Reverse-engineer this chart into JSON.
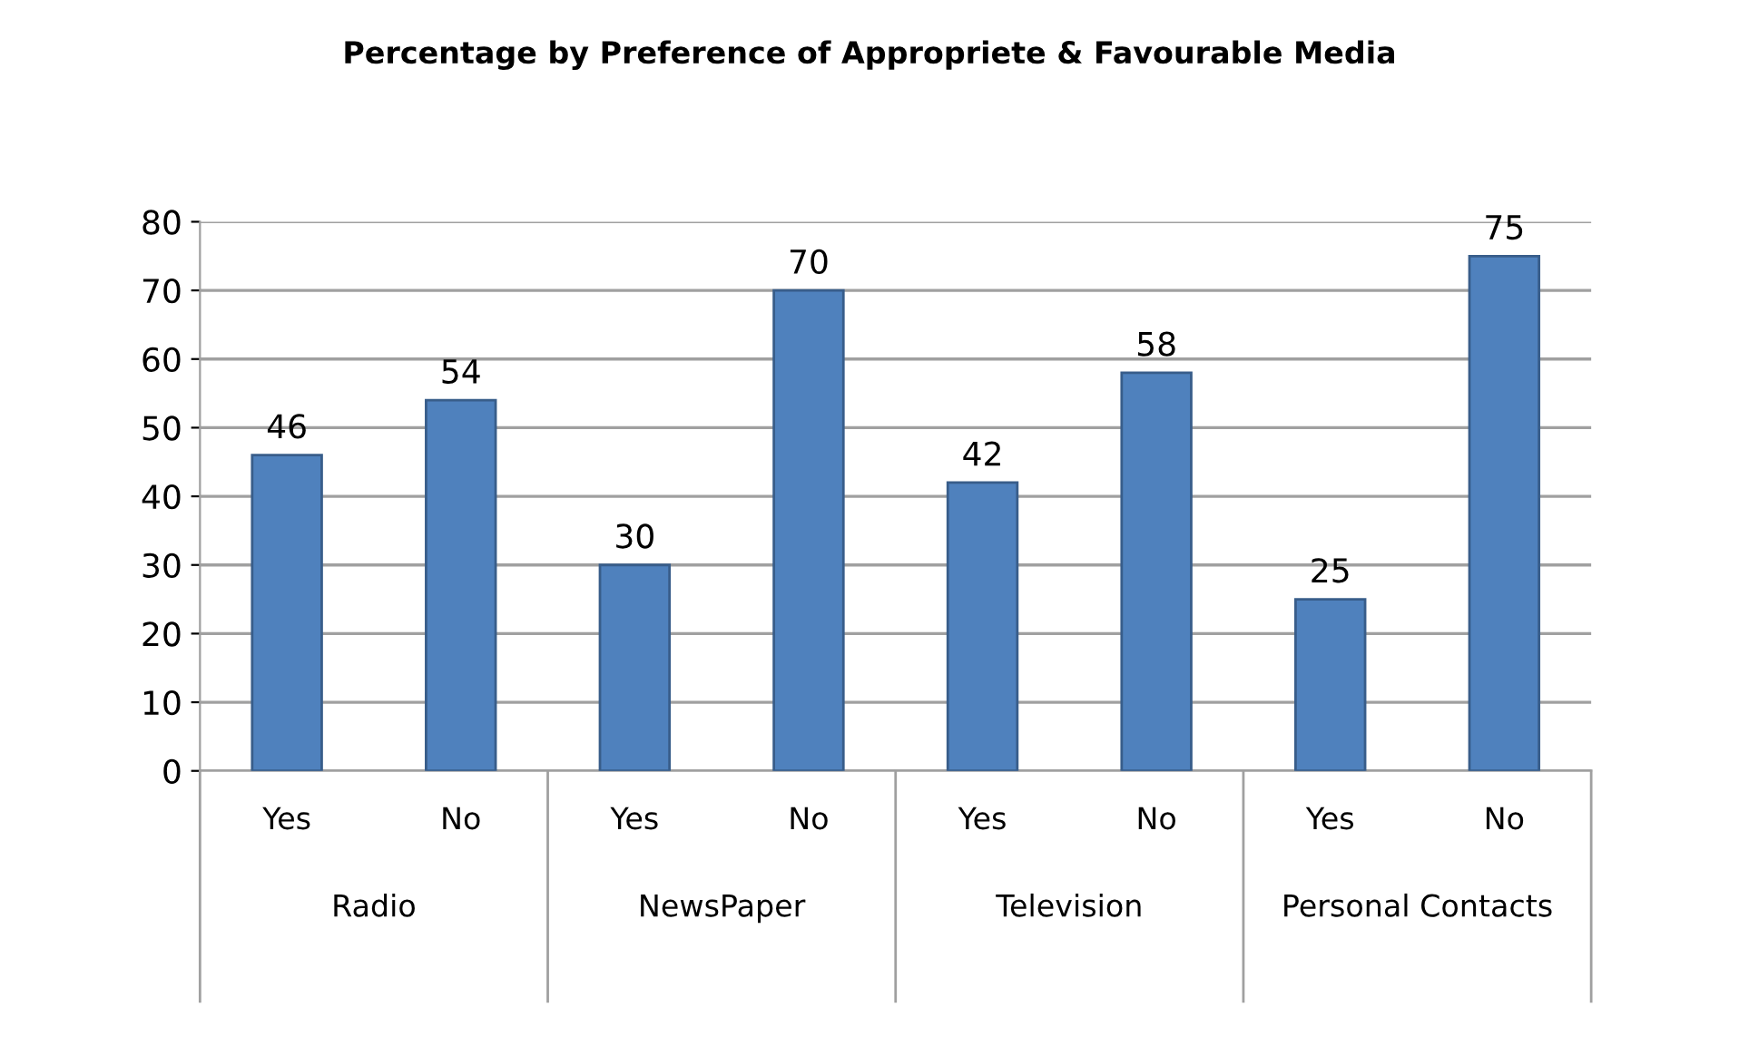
{
  "chart_data": {
    "type": "bar",
    "title": "Percentage by Preference of Appropriete & Favourable Media",
    "categories": [
      "Yes",
      "No",
      "Yes",
      "No",
      "Yes",
      "No",
      "Yes",
      "No"
    ],
    "values": [
      46,
      54,
      30,
      70,
      42,
      58,
      25,
      75
    ],
    "color": "#4f81bd",
    "ylim": [
      0,
      80
    ],
    "yticks": [
      0,
      10,
      20,
      30,
      40,
      50,
      60,
      70,
      80
    ],
    "grid": "y",
    "data_labels": true,
    "annotations": [
      "Radio",
      "NewsPaper",
      "Television",
      "Personal Contacts"
    ]
  }
}
